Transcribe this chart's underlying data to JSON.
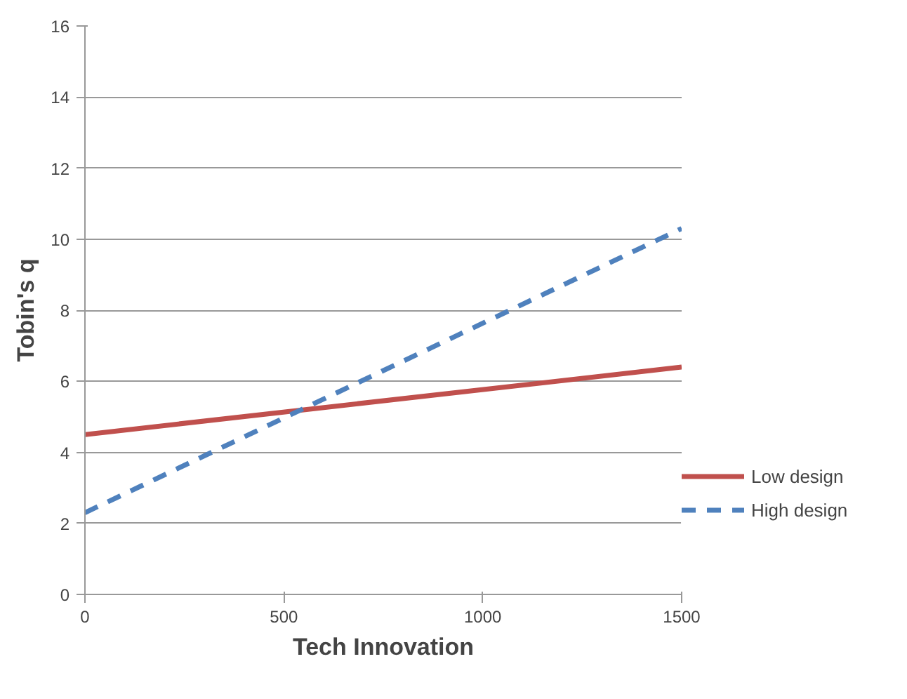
{
  "chart_data": {
    "type": "line",
    "xlabel": "Tech Innovation",
    "ylabel": "Tobin's q",
    "x": [
      0,
      1500
    ],
    "series": [
      {
        "name": "Low design",
        "color": "#c0504d",
        "values": [
          4.5,
          6.4
        ],
        "line_style": "solid"
      },
      {
        "name": "High design",
        "color": "#4f81bd",
        "values": [
          2.3,
          10.3
        ],
        "line_style": "dashed"
      }
    ],
    "xlim": [
      0,
      1500
    ],
    "xticks": [
      0,
      500,
      1000,
      1500
    ],
    "ylim": [
      0,
      16
    ],
    "yticks": [
      0,
      2,
      4,
      6,
      8,
      10,
      12,
      14,
      16
    ],
    "grid": "y",
    "legend": "right",
    "marker": "none"
  }
}
